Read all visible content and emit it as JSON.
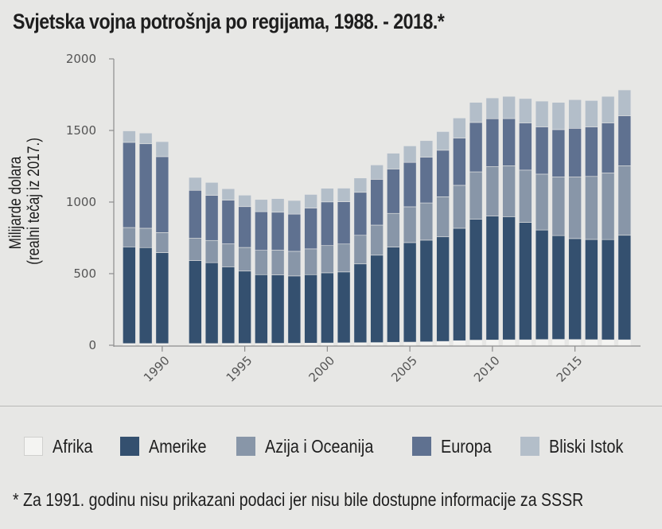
{
  "title": "Svjetska vojna potrošnja po regijama, 1988. - 2018.*",
  "ylabel_line1": "Milijarde dolara",
  "ylabel_line2": "(realni tečaj iz 2017.)",
  "footnote": "* Za 1991. godinu nisu prikazani podaci jer nisu bile dostupne informacije za SSSR",
  "colors": {
    "Afrika": "#f4f4f2",
    "Amerike": "#34506f",
    "Azija i Oceanija": "#8896a8",
    "Europa": "#5f7190",
    "Bliski Istok": "#b3bec9",
    "axis": "#8d8d8d",
    "tick_text": "#555555"
  },
  "chart_data": {
    "type": "bar",
    "stacked": true,
    "x": [
      1988,
      1989,
      1990,
      1991,
      1992,
      1993,
      1994,
      1995,
      1996,
      1997,
      1998,
      1999,
      2000,
      2001,
      2002,
      2003,
      2004,
      2005,
      2006,
      2007,
      2008,
      2009,
      2010,
      2011,
      2012,
      2013,
      2014,
      2015,
      2016,
      2017,
      2018
    ],
    "x_tick_labels": [
      "1990",
      "1995",
      "2000",
      "2005",
      "2010",
      "2015"
    ],
    "x_tick_values": [
      1990,
      1995,
      2000,
      2005,
      2010,
      2015
    ],
    "y_tick_labels": [
      "0",
      "500",
      "1000",
      "1500",
      "2000"
    ],
    "y_tick_values": [
      0,
      500,
      1000,
      1500,
      2000
    ],
    "ylim": [
      0,
      2000
    ],
    "ylabel": "Milijarde dolara (realni tečaj iz 2017.)",
    "grid": false,
    "legend_position": "bottom",
    "series": [
      {
        "name": "Afrika",
        "values": [
          12,
          12,
          12,
          null,
          12,
          12,
          13,
          13,
          13,
          14,
          14,
          15,
          16,
          17,
          18,
          19,
          21,
          22,
          24,
          27,
          32,
          36,
          37,
          38,
          38,
          40,
          41,
          40,
          39,
          38,
          38
        ]
      },
      {
        "name": "Amerike",
        "values": [
          675,
          670,
          635,
          null,
          580,
          565,
          535,
          505,
          480,
          478,
          470,
          478,
          490,
          495,
          550,
          610,
          665,
          695,
          710,
          730,
          785,
          845,
          865,
          860,
          820,
          765,
          725,
          705,
          700,
          700,
          730
        ]
      },
      {
        "name": "Azija i Oceanija",
        "values": [
          135,
          135,
          140,
          null,
          155,
          155,
          160,
          165,
          170,
          172,
          172,
          180,
          190,
          195,
          200,
          210,
          235,
          250,
          260,
          280,
          300,
          330,
          345,
          355,
          365,
          390,
          410,
          430,
          440,
          465,
          485
        ]
      },
      {
        "name": "Europa",
        "values": [
          595,
          590,
          530,
          null,
          335,
          315,
          305,
          285,
          270,
          265,
          260,
          285,
          305,
          295,
          300,
          320,
          310,
          310,
          320,
          325,
          330,
          345,
          335,
          330,
          330,
          330,
          330,
          340,
          345,
          350,
          350
        ]
      },
      {
        "name": "Bliski Istok",
        "values": [
          80,
          75,
          105,
          null,
          90,
          90,
          80,
          80,
          85,
          95,
          95,
          95,
          95,
          95,
          100,
          100,
          110,
          115,
          115,
          130,
          140,
          140,
          145,
          155,
          170,
          180,
          190,
          200,
          185,
          185,
          180
        ]
      }
    ]
  }
}
